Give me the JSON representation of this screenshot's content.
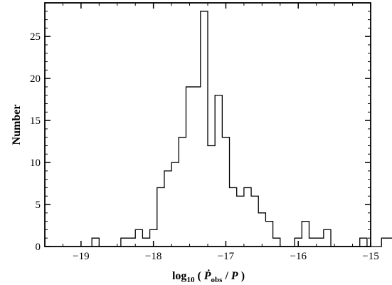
{
  "chart_data": {
    "type": "histogram",
    "xlabel": {
      "prefix": "log",
      "prefix_sub": "10",
      "open": " ( ",
      "var": "Ṗ",
      "var_sub": "obs",
      "mid": " / ",
      "var2": "P",
      "close": " )"
    },
    "ylabel": "Number",
    "xlim": [
      -19.5,
      -15.0
    ],
    "ylim": [
      0,
      29
    ],
    "xticks": [
      -19,
      -18,
      -17,
      -16,
      -15
    ],
    "xtick_labels": [
      "−19",
      "−18",
      "−17",
      "−16",
      "−15"
    ],
    "yticks": [
      0,
      5,
      10,
      15,
      20,
      25
    ],
    "ytick_labels": [
      "0",
      "5",
      "10",
      "15",
      "20",
      "25"
    ],
    "bin_start": -18.85,
    "bin_width": 0.1,
    "counts": [
      1,
      0,
      0,
      0,
      1,
      1,
      2,
      1,
      2,
      7,
      9,
      10,
      13,
      19,
      19,
      28,
      12,
      18,
      13,
      7,
      6,
      7,
      6,
      4,
      3,
      1,
      0,
      0,
      1,
      3,
      1,
      1,
      2,
      0,
      0,
      0,
      0,
      1,
      0,
      0,
      1,
      1
    ],
    "line_color": "#000000",
    "grid": false,
    "legend": "none"
  }
}
